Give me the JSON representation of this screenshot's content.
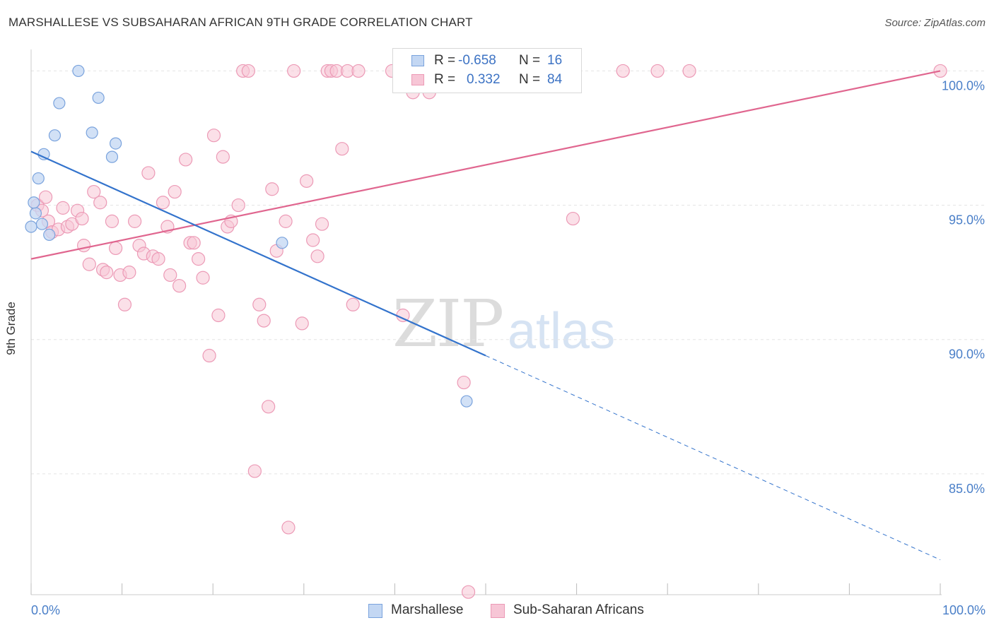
{
  "title": "MARSHALLESE VS SUBSAHARAN AFRICAN 9TH GRADE CORRELATION CHART",
  "source": "Source: ZipAtlas.com",
  "watermark_zip": "ZIP",
  "watermark_atlas": "atlas",
  "legend": {
    "rows": [
      {
        "r_label": "R =",
        "r_value": "-0.658",
        "n_label": "N =",
        "n_value": "16"
      },
      {
        "r_label": "R =",
        "r_value": "0.332",
        "n_label": "N =",
        "n_value": "84"
      }
    ]
  },
  "bottom_legend": {
    "series1": "Marshallese",
    "series2": "Sub-Saharan Africans"
  },
  "colors": {
    "blue_fill": "#c3d7f3",
    "blue_stroke": "#7aa3dd",
    "blue_line": "#3373cc",
    "pink_fill": "#f7c6d6",
    "pink_stroke": "#ec9ab6",
    "pink_line": "#e0668f",
    "tick_text": "#4a7fc8"
  },
  "chart_data": {
    "type": "scatter",
    "title": "MARSHALLESE VS SUBSAHARAN AFRICAN 9TH GRADE CORRELATION CHART",
    "xlabel": "",
    "ylabel": "9th Grade",
    "xlim": [
      0,
      100
    ],
    "ylim": [
      80.5,
      100.8
    ],
    "x_ticks": [
      "0.0%",
      "100.0%"
    ],
    "y_ticks": [
      {
        "value": 100,
        "label": "100.0%"
      },
      {
        "value": 95,
        "label": "95.0%"
      },
      {
        "value": 90,
        "label": "90.0%"
      },
      {
        "value": 85,
        "label": "85.0%"
      }
    ],
    "grid": true,
    "legend_placement": "top-center",
    "series": [
      {
        "name": "Marshallese",
        "points": [
          [
            0.0,
            94.2
          ],
          [
            0.5,
            94.7
          ],
          [
            0.3,
            95.1
          ],
          [
            0.8,
            96.0
          ],
          [
            1.4,
            96.9
          ],
          [
            2.0,
            93.9
          ],
          [
            1.2,
            94.3
          ],
          [
            2.6,
            97.6
          ],
          [
            3.1,
            98.8
          ],
          [
            5.2,
            100.0
          ],
          [
            6.7,
            97.7
          ],
          [
            7.4,
            99.0
          ],
          [
            8.9,
            96.8
          ],
          [
            9.3,
            97.3
          ],
          [
            27.6,
            93.6
          ],
          [
            47.9,
            87.7
          ]
        ],
        "trend": {
          "x0": 0,
          "y0": 97.0,
          "x1": 100,
          "y1": 81.8,
          "solid_until_x": 50
        }
      },
      {
        "name": "Sub-Saharan Africans",
        "points": [
          [
            0.7,
            95.0
          ],
          [
            1.2,
            94.8
          ],
          [
            1.6,
            95.3
          ],
          [
            1.9,
            94.4
          ],
          [
            2.3,
            94.0
          ],
          [
            3.0,
            94.1
          ],
          [
            3.5,
            94.9
          ],
          [
            4.0,
            94.2
          ],
          [
            4.5,
            94.3
          ],
          [
            5.1,
            94.8
          ],
          [
            5.6,
            94.5
          ],
          [
            5.8,
            93.5
          ],
          [
            6.4,
            92.8
          ],
          [
            6.9,
            95.5
          ],
          [
            7.6,
            95.1
          ],
          [
            7.9,
            92.6
          ],
          [
            8.3,
            92.5
          ],
          [
            8.9,
            94.4
          ],
          [
            9.3,
            93.4
          ],
          [
            9.8,
            92.4
          ],
          [
            10.3,
            91.3
          ],
          [
            10.8,
            92.5
          ],
          [
            11.4,
            94.4
          ],
          [
            11.9,
            93.5
          ],
          [
            12.4,
            93.2
          ],
          [
            12.9,
            96.2
          ],
          [
            13.4,
            93.1
          ],
          [
            14.0,
            93.0
          ],
          [
            14.5,
            95.1
          ],
          [
            15.0,
            94.2
          ],
          [
            15.3,
            92.4
          ],
          [
            15.8,
            95.5
          ],
          [
            16.3,
            92.0
          ],
          [
            17.0,
            96.7
          ],
          [
            17.5,
            93.6
          ],
          [
            17.9,
            93.6
          ],
          [
            18.4,
            93.0
          ],
          [
            18.9,
            92.3
          ],
          [
            19.6,
            89.4
          ],
          [
            20.1,
            97.6
          ],
          [
            20.6,
            90.9
          ],
          [
            21.1,
            96.8
          ],
          [
            21.6,
            94.2
          ],
          [
            22.0,
            94.4
          ],
          [
            22.8,
            95.0
          ],
          [
            23.3,
            100.0
          ],
          [
            23.9,
            100.0
          ],
          [
            24.6,
            85.1
          ],
          [
            25.1,
            91.3
          ],
          [
            25.6,
            90.7
          ],
          [
            26.1,
            87.5
          ],
          [
            26.5,
            95.6
          ],
          [
            27.0,
            93.3
          ],
          [
            28.0,
            94.4
          ],
          [
            28.3,
            83.0
          ],
          [
            28.9,
            100.0
          ],
          [
            29.8,
            90.6
          ],
          [
            30.3,
            95.9
          ],
          [
            31.0,
            93.7
          ],
          [
            31.5,
            93.1
          ],
          [
            32.0,
            94.3
          ],
          [
            32.6,
            100.0
          ],
          [
            33.0,
            100.0
          ],
          [
            33.6,
            100.0
          ],
          [
            34.2,
            97.1
          ],
          [
            34.8,
            100.0
          ],
          [
            35.4,
            91.3
          ],
          [
            36.0,
            100.0
          ],
          [
            39.7,
            100.0
          ],
          [
            40.9,
            90.9
          ],
          [
            44.6,
            100.0
          ],
          [
            47.1,
            100.0
          ],
          [
            47.6,
            88.4
          ],
          [
            48.1,
            80.6
          ],
          [
            52.3,
            100.0
          ],
          [
            54.5,
            100.0
          ],
          [
            55.6,
            100.0
          ],
          [
            59.6,
            94.5
          ],
          [
            65.1,
            100.0
          ],
          [
            68.9,
            100.0
          ],
          [
            72.4,
            100.0
          ],
          [
            100.0,
            100.0
          ],
          [
            42.0,
            99.2
          ],
          [
            43.8,
            99.2
          ]
        ],
        "trend": {
          "x0": 0,
          "y0": 93.0,
          "x1": 100,
          "y1": 100.0
        }
      }
    ]
  }
}
